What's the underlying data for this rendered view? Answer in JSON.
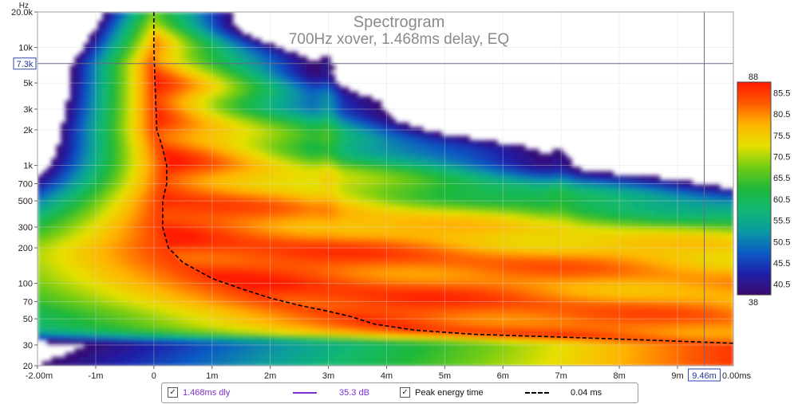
{
  "chart_data": {
    "type": "heatmap",
    "title": "Spectrogram",
    "subtitle": "700Hz xover, 1.468ms delay, EQ",
    "xlabel": "",
    "ylabel": "Hz",
    "x_unit": "ms",
    "xlim": [
      -2.0,
      9.96
    ],
    "ylim_hz": [
      20,
      20000
    ],
    "y_scale": "log",
    "x_ticks": [
      {
        "value": -2,
        "label": "-2.00m"
      },
      {
        "value": -1,
        "label": "-1m"
      },
      {
        "value": 0,
        "label": "0"
      },
      {
        "value": 1,
        "label": "1m"
      },
      {
        "value": 2,
        "label": "2m"
      },
      {
        "value": 3,
        "label": "3m"
      },
      {
        "value": 4,
        "label": "4m"
      },
      {
        "value": 5,
        "label": "5m"
      },
      {
        "value": 6,
        "label": "6m"
      },
      {
        "value": 7,
        "label": "7m"
      },
      {
        "value": 8,
        "label": "8m"
      },
      {
        "value": 9,
        "label": "9m"
      }
    ],
    "x_end_label": "0.00ms",
    "y_ticks": [
      {
        "value": 20000,
        "label": "20.0k"
      },
      {
        "value": 10000,
        "label": "10k"
      },
      {
        "value": 5000,
        "label": "5k"
      },
      {
        "value": 3000,
        "label": "3k"
      },
      {
        "value": 2000,
        "label": "2k"
      },
      {
        "value": 1000,
        "label": "1k"
      },
      {
        "value": 700,
        "label": "700"
      },
      {
        "value": 500,
        "label": "500"
      },
      {
        "value": 300,
        "label": "300"
      },
      {
        "value": 200,
        "label": "200"
      },
      {
        "value": 100,
        "label": "100"
      },
      {
        "value": 70,
        "label": "70"
      },
      {
        "value": 50,
        "label": "50"
      },
      {
        "value": 30,
        "label": "30"
      },
      {
        "value": 20,
        "label": "20"
      }
    ],
    "cursor": {
      "x_value": 9.46,
      "x_label": "9.46m",
      "y_value": 7300,
      "y_label": "7.3k"
    },
    "colorbar": {
      "min": 38,
      "max": 88,
      "min_label": "38",
      "max_label": "88",
      "ticks": [
        85.5,
        80.5,
        75.5,
        70.5,
        65.5,
        60.5,
        55.5,
        50.5,
        45.5,
        40.5
      ],
      "colors": [
        "#3a0a6e",
        "#1f1fa8",
        "#0b5cc4",
        "#0a9aa0",
        "#12b872",
        "#1fb83a",
        "#72cc14",
        "#e5e000",
        "#ffb400",
        "#ff5a00",
        "#ff1a00"
      ]
    },
    "peak_energy_curve": [
      {
        "freq": 20000,
        "t": 0.0
      },
      {
        "freq": 10000,
        "t": 0.0
      },
      {
        "freq": 5000,
        "t": 0.02
      },
      {
        "freq": 2000,
        "t": 0.05
      },
      {
        "freq": 1400,
        "t": 0.15
      },
      {
        "freq": 1000,
        "t": 0.22
      },
      {
        "freq": 700,
        "t": 0.22
      },
      {
        "freq": 500,
        "t": 0.15
      },
      {
        "freq": 300,
        "t": 0.15
      },
      {
        "freq": 200,
        "t": 0.25
      },
      {
        "freq": 150,
        "t": 0.5
      },
      {
        "freq": 110,
        "t": 1.0
      },
      {
        "freq": 90,
        "t": 1.5
      },
      {
        "freq": 75,
        "t": 2.0
      },
      {
        "freq": 65,
        "t": 2.5
      },
      {
        "freq": 58,
        "t": 3.0
      },
      {
        "freq": 52,
        "t": 3.4
      },
      {
        "freq": 45,
        "t": 3.8
      },
      {
        "freq": 40,
        "t": 4.5
      },
      {
        "freq": 37,
        "t": 5.5
      },
      {
        "freq": 35,
        "t": 7.0
      },
      {
        "freq": 33,
        "t": 8.5
      },
      {
        "freq": 31,
        "t": 9.96
      }
    ],
    "legend": [
      {
        "checked": true,
        "label": "1.468ms dly",
        "color": "#7b2fd0",
        "value": "35.3 dB",
        "style": "solid"
      },
      {
        "checked": true,
        "label": "Peak energy time",
        "color": "#000000",
        "value": "0.04 ms",
        "style": "dashed"
      }
    ]
  }
}
